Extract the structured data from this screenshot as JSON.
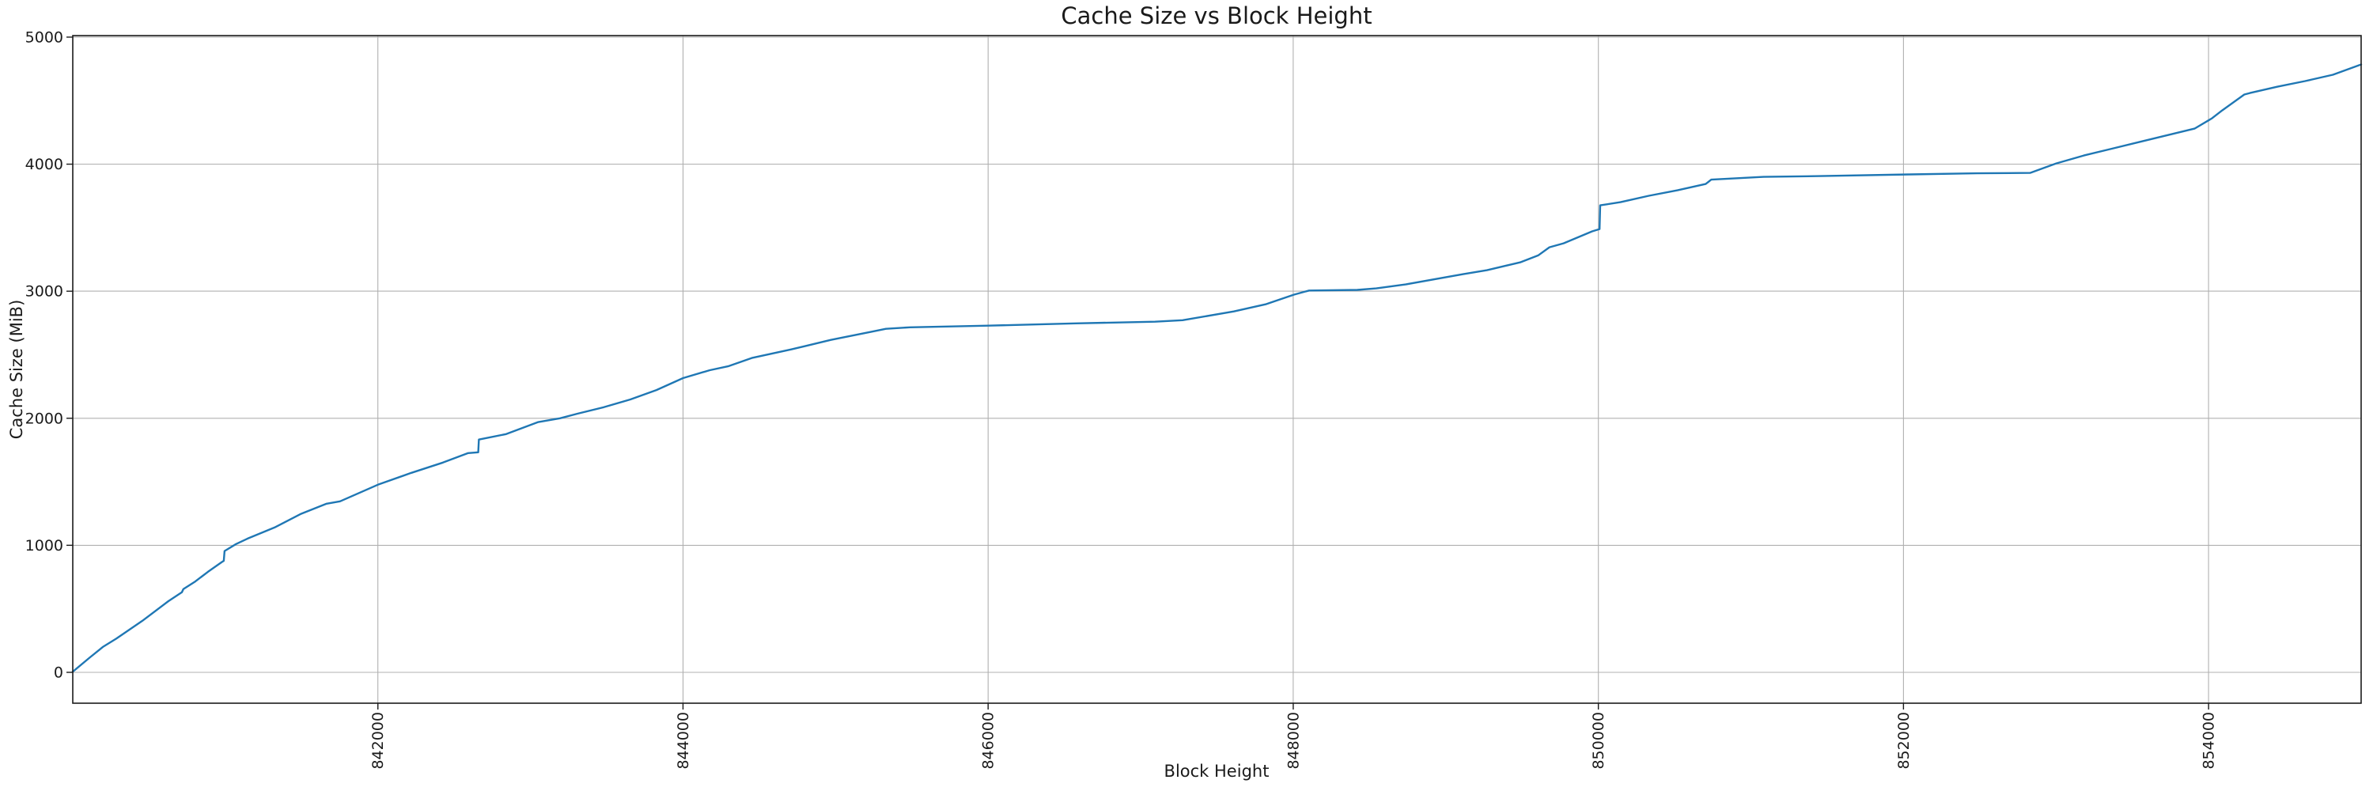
{
  "chart_data": {
    "type": "line",
    "title": "Cache Size vs Block Height",
    "xlabel": "Block Height",
    "ylabel": "Cache Size (MiB)",
    "grid": true,
    "legend": false,
    "line_color": "#1f77b4",
    "grid_color": "#b0b0b0",
    "spine_color": "#1a1a1a",
    "xlim": [
      840000,
      855000
    ],
    "ylim": [
      -243,
      5012
    ],
    "x_ticks": [
      842000,
      844000,
      846000,
      848000,
      850000,
      852000,
      854000
    ],
    "x_tick_labels": [
      "842000",
      "844000",
      "846000",
      "848000",
      "850000",
      "852000",
      "854000"
    ],
    "y_ticks": [
      0,
      1000,
      2000,
      3000,
      4000,
      5000
    ],
    "y_tick_labels": [
      "0",
      "1000",
      "2000",
      "3000",
      "4000",
      "5000"
    ],
    "x_tick_rotation": 90,
    "series": [
      {
        "name": "cache-size",
        "points": [
          [
            840000,
            5
          ],
          [
            840110,
            115
          ],
          [
            840197,
            200
          ],
          [
            840285,
            265
          ],
          [
            840456,
            405
          ],
          [
            840627,
            560
          ],
          [
            840715,
            630
          ],
          [
            840725,
            655
          ],
          [
            840803,
            715
          ],
          [
            840886,
            791
          ],
          [
            840975,
            866
          ],
          [
            840990,
            878
          ],
          [
            840995,
            955
          ],
          [
            841070,
            1010
          ],
          [
            841146,
            1053
          ],
          [
            841322,
            1140
          ],
          [
            841493,
            1246
          ],
          [
            841664,
            1327
          ],
          [
            841752,
            1346
          ],
          [
            842000,
            1477
          ],
          [
            842219,
            1570
          ],
          [
            842426,
            1651
          ],
          [
            842592,
            1726
          ],
          [
            842658,
            1732
          ],
          [
            842662,
            1832
          ],
          [
            842841,
            1875
          ],
          [
            843048,
            1969
          ],
          [
            843194,
            2000
          ],
          [
            843308,
            2036
          ],
          [
            843479,
            2086
          ],
          [
            843655,
            2148
          ],
          [
            843826,
            2222
          ],
          [
            844000,
            2316
          ],
          [
            844176,
            2378
          ],
          [
            844295,
            2409
          ],
          [
            844451,
            2474
          ],
          [
            844710,
            2542
          ],
          [
            844969,
            2617
          ],
          [
            845228,
            2679
          ],
          [
            845330,
            2704
          ],
          [
            845487,
            2716
          ],
          [
            846000,
            2729
          ],
          [
            846576,
            2747
          ],
          [
            847094,
            2760
          ],
          [
            847275,
            2772
          ],
          [
            847611,
            2841
          ],
          [
            847819,
            2897
          ],
          [
            848005,
            2973
          ],
          [
            848080,
            2998
          ],
          [
            848104,
            3005
          ],
          [
            848420,
            3010
          ],
          [
            848544,
            3022
          ],
          [
            848736,
            3053
          ],
          [
            849114,
            3134
          ],
          [
            849270,
            3165
          ],
          [
            849487,
            3227
          ],
          [
            849607,
            3283
          ],
          [
            849679,
            3346
          ],
          [
            849772,
            3377
          ],
          [
            849959,
            3471
          ],
          [
            850008,
            3489
          ],
          [
            850012,
            3676
          ],
          [
            850145,
            3701
          ],
          [
            850331,
            3751
          ],
          [
            850518,
            3794
          ],
          [
            850704,
            3844
          ],
          [
            850740,
            3878
          ],
          [
            851083,
            3900
          ],
          [
            851456,
            3906
          ],
          [
            852042,
            3919
          ],
          [
            852482,
            3928
          ],
          [
            852830,
            3931
          ],
          [
            853001,
            4006
          ],
          [
            853182,
            4068
          ],
          [
            853545,
            4174
          ],
          [
            853908,
            4280
          ],
          [
            854022,
            4361
          ],
          [
            854089,
            4423
          ],
          [
            854234,
            4548
          ],
          [
            854271,
            4560
          ],
          [
            854452,
            4610
          ],
          [
            854633,
            4654
          ],
          [
            854815,
            4704
          ],
          [
            855000,
            4785
          ]
        ]
      }
    ]
  }
}
